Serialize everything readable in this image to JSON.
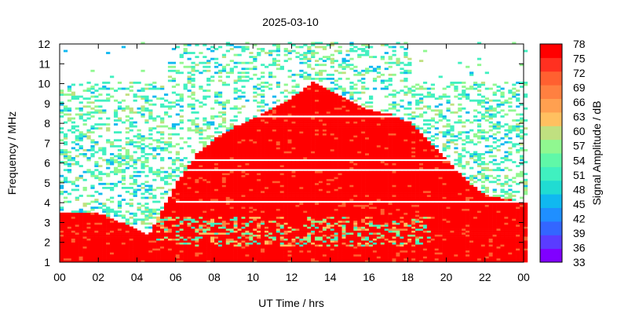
{
  "chart_data": {
    "type": "heatmap",
    "title": "2025-03-10",
    "xlabel": "UT Time / hrs",
    "ylabel": "Frequency / MHz",
    "colorbar_label": "Signal Amplitude / dB",
    "xlim": [
      0,
      24
    ],
    "ylim": [
      1,
      12
    ],
    "x_ticks": [
      "00",
      "02",
      "04",
      "06",
      "08",
      "10",
      "12",
      "14",
      "16",
      "18",
      "20",
      "22",
      "00"
    ],
    "y_ticks": [
      "1",
      "2",
      "3",
      "4",
      "5",
      "6",
      "7",
      "8",
      "9",
      "10",
      "11",
      "12"
    ],
    "colorbar_range": [
      33,
      78
    ],
    "colorbar_ticks": [
      "78",
      "75",
      "72",
      "69",
      "66",
      "63",
      "60",
      "57",
      "54",
      "51",
      "48",
      "45",
      "42",
      "39",
      "36",
      "33"
    ],
    "colorscale": [
      "#8000ff",
      "#5a3cff",
      "#3366ff",
      "#1f8fff",
      "#10b8f0",
      "#20dcd2",
      "#40f0c0",
      "#60f8a8",
      "#90f890",
      "#c0e080",
      "#ffc060",
      "#ffa050",
      "#ff8040",
      "#ff6030",
      "#ff3020",
      "#ff0000"
    ],
    "daytime_ionosphere_envelope_mhz": {
      "x": [
        4.5,
        5,
        6,
        7,
        8,
        9,
        10,
        11,
        12,
        13,
        14,
        15,
        16,
        17,
        18,
        19,
        20,
        21,
        22,
        24
      ],
      "top": [
        2.3,
        3.2,
        5.0,
        6.4,
        7.2,
        7.8,
        8.2,
        8.7,
        9.3,
        10.0,
        9.5,
        9.0,
        8.6,
        8.4,
        8.0,
        7.0,
        6.0,
        5.0,
        4.3,
        4.0
      ]
    },
    "night_low_band_mhz": {
      "x": [
        0,
        2,
        4,
        4.5,
        20,
        22,
        24
      ],
      "top": [
        3.5,
        3.4,
        2.6,
        2.3,
        4.5,
        4.2,
        4.0
      ]
    },
    "grid": false,
    "legend": "colorbar-right"
  }
}
